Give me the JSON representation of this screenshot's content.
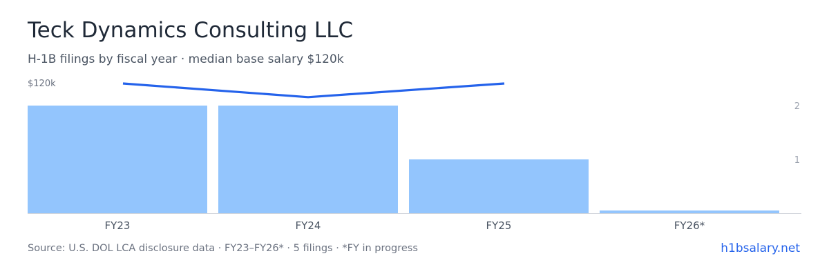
{
  "header": {
    "title": "Teck Dynamics Consulting LLC",
    "subtitle": "H-1B filings by fiscal year · median base salary $120k"
  },
  "footer": {
    "source": "Source: U.S. DOL LCA disclosure data · FY23–FY26* · 5 filings · *FY in progress",
    "brand": "h1bsalary.net"
  },
  "colors": {
    "bar": "#93c5fd",
    "line": "#2563eb",
    "axis_text": "#6b7280",
    "axis_line": "#d1d5db"
  },
  "chart_data": {
    "type": "bar",
    "categories": [
      "FY23",
      "FY24",
      "FY25",
      "FY26*"
    ],
    "series": [
      {
        "values": [
          2,
          2,
          1,
          0.05
        ]
      },
      {
        "type": "line",
        "values": [
          120,
          117,
          120,
          null
        ]
      }
    ],
    "left_axis": {
      "tick_label": "$120k"
    },
    "right_axis": {
      "ticks": [
        1,
        2
      ],
      "range": [
        0,
        2.4
      ]
    },
    "grid": false
  }
}
